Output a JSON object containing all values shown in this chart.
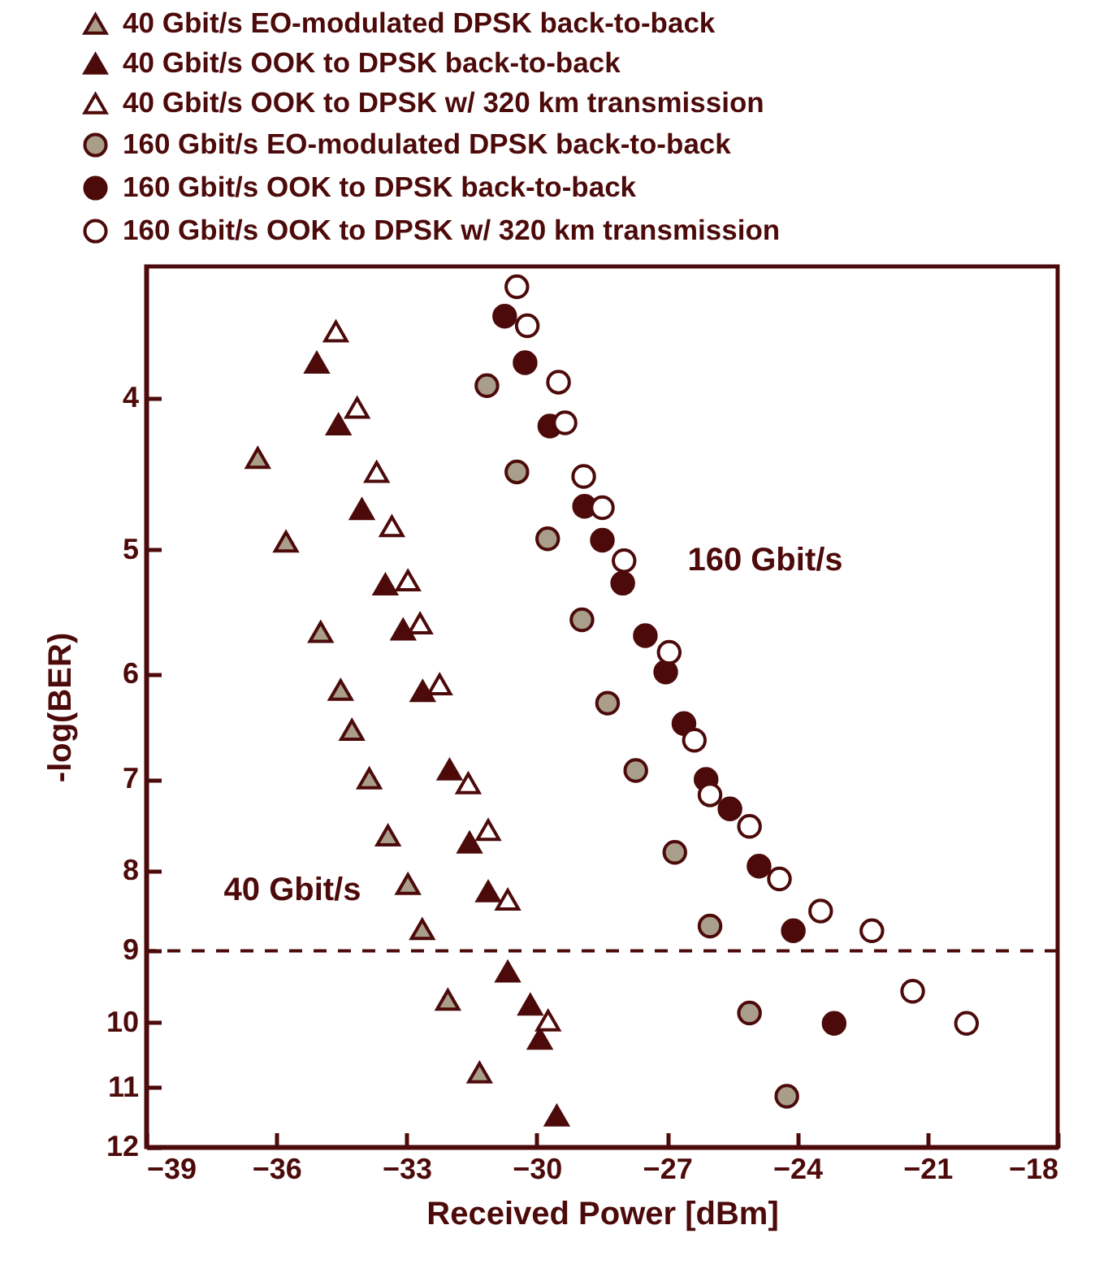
{
  "chart_data": {
    "type": "scatter",
    "xlabel": "Received Power [dBm]",
    "ylabel": "-log(BER)",
    "xlim": [
      -39,
      -18
    ],
    "xticks": [
      -39,
      -36,
      -33,
      -30,
      -27,
      -24,
      -21,
      -18
    ],
    "ylim": [
      12,
      3.3
    ],
    "yticks": [
      4,
      5,
      6,
      7,
      8,
      9,
      10,
      11,
      12
    ],
    "log": "y",
    "legend": "top",
    "annotations": [
      "40 Gbit/s",
      "160 Gbit/s"
    ],
    "ref_lines": [
      {
        "axis": "y",
        "value": 9,
        "line_style": "dashed",
        "color": "#4d0a0a"
      }
    ],
    "series": [
      {
        "name": "40 Gbit/s EO-modulated DPSK back-to-back",
        "color": "#a89e8a",
        "marker": "triangle",
        "x": [
          -36.43,
          -35.78,
          -34.98,
          -34.52,
          -34.26,
          -33.86,
          -33.43,
          -32.97,
          -32.64,
          -32.05,
          -31.32
        ],
        "values": [
          4.37,
          4.94,
          5.64,
          6.14,
          6.51,
          6.99,
          7.6,
          8.16,
          8.72,
          9.67,
          10.76
        ]
      },
      {
        "name": "40 Gbit/s OOK to DPSK back-to-back",
        "color": "#4d0a0a",
        "marker": "triangle",
        "x": [
          -35.07,
          -34.57,
          -34.03,
          -33.49,
          -33.08,
          -32.63,
          -32.01,
          -31.55,
          -31.12,
          -30.67,
          -30.15,
          -29.93,
          -29.54
        ],
        "values": [
          3.8,
          4.16,
          4.71,
          5.26,
          5.62,
          6.15,
          6.9,
          7.68,
          8.25,
          9.28,
          9.74,
          10.24,
          11.46
        ]
      },
      {
        "name": "40 Gbit/s OOK to DPSK w/ 320 km transmission",
        "color": "#4d0a0a",
        "marker": "triangle-open",
        "x": [
          -34.63,
          -34.14,
          -33.69,
          -33.34,
          -32.97,
          -32.69,
          -32.24,
          -31.58,
          -31.12,
          -30.67,
          -29.74
        ],
        "values": [
          3.63,
          4.06,
          4.46,
          4.83,
          5.23,
          5.57,
          6.09,
          7.04,
          7.54,
          8.35,
          9.97
        ]
      },
      {
        "name": "160 Gbit/s EO-modulated DPSK back-to-back",
        "color": "#a89e8a",
        "marker": "circle",
        "x": [
          -31.15,
          -30.46,
          -29.75,
          -28.96,
          -28.37,
          -27.72,
          -26.82,
          -26.01,
          -25.1,
          -24.24
        ],
        "values": [
          3.93,
          4.46,
          4.92,
          5.54,
          6.26,
          6.91,
          7.79,
          8.68,
          9.86,
          11.14
        ]
      },
      {
        "name": "160 Gbit/s OOK to DPSK back-to-back",
        "color": "#4d0a0a",
        "marker": "circle",
        "x": [
          -30.74,
          -30.27,
          -29.7,
          -28.9,
          -28.49,
          -28.02,
          -27.5,
          -27.03,
          -26.61,
          -26.1,
          -25.55,
          -24.88,
          -24.09,
          -23.15
        ],
        "values": [
          3.55,
          3.8,
          4.17,
          4.69,
          4.93,
          5.25,
          5.67,
          5.98,
          6.45,
          7.0,
          7.31,
          7.95,
          8.74,
          10.01
        ]
      },
      {
        "name": "160 Gbit/s OOK to DPSK w/ 320 km transmission",
        "color": "#4d0a0a",
        "marker": "circle-open",
        "x": [
          -30.46,
          -30.22,
          -29.5,
          -29.35,
          -28.92,
          -28.49,
          -27.99,
          -26.95,
          -26.37,
          -26.01,
          -25.1,
          -24.41,
          -23.46,
          -22.28,
          -21.34,
          -20.1
        ],
        "values": [
          3.4,
          3.6,
          3.91,
          4.15,
          4.49,
          4.7,
          5.08,
          5.81,
          6.61,
          7.16,
          7.5,
          8.1,
          8.49,
          8.74,
          9.55,
          10.01
        ]
      }
    ]
  }
}
